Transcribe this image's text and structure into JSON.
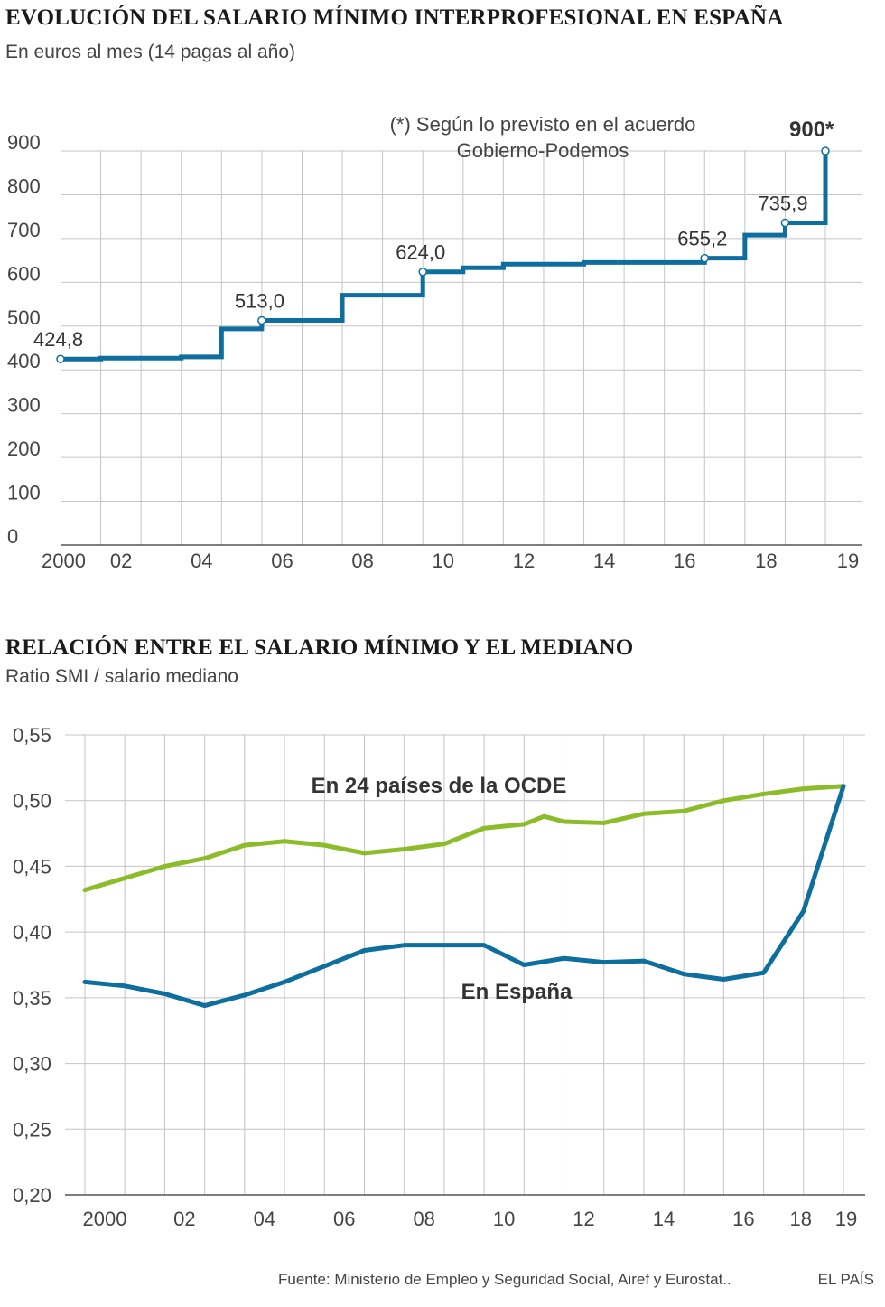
{
  "chart_data": [
    {
      "type": "line",
      "title": "EVOLUCIÓN DEL SALARIO MÍNIMO INTERPROFESIONAL EN ESPAÑA",
      "subtitle": "En euros al mes (14 pagas al año)",
      "xlabel": "",
      "ylabel": "",
      "ylim": [
        0,
        900
      ],
      "y_ticks": [
        "0",
        "100",
        "200",
        "300",
        "400",
        "500",
        "600",
        "700",
        "800",
        "900"
      ],
      "x_tick_labels": [
        {
          "year": 2000,
          "label": "2000"
        },
        {
          "year": 2002,
          "label": "02"
        },
        {
          "year": 2004,
          "label": "04"
        },
        {
          "year": 2006,
          "label": "06"
        },
        {
          "year": 2008,
          "label": "08"
        },
        {
          "year": 2010,
          "label": "10"
        },
        {
          "year": 2012,
          "label": "12"
        },
        {
          "year": 2014,
          "label": "14"
        },
        {
          "year": 2016,
          "label": "16"
        },
        {
          "year": 2018,
          "label": "18"
        },
        {
          "year": 2019,
          "label": "19"
        }
      ],
      "grid": true,
      "step": true,
      "series": [
        {
          "color": "#0e6e9d",
          "x": [
            2000,
            2001,
            2002,
            2003,
            2004,
            2005,
            2006,
            2007,
            2008,
            2009,
            2010,
            2011,
            2012,
            2013,
            2014,
            2015,
            2016,
            2017,
            2018,
            2019
          ],
          "y": [
            424.8,
            426.8,
            426.8,
            429.6,
            493.5,
            513.0,
            513.0,
            570.6,
            570.6,
            624.0,
            633.3,
            641.4,
            641.4,
            645.3,
            645.3,
            645.3,
            655.2,
            707.7,
            735.9,
            900.0
          ]
        }
      ],
      "labels": [
        {
          "year": 2000,
          "value": 424.8,
          "text": "424,8"
        },
        {
          "year": 2005,
          "value": 513.0,
          "text": "513,0"
        },
        {
          "year": 2009,
          "value": 624.0,
          "text": "624,0"
        },
        {
          "year": 2016,
          "value": 655.2,
          "text": "655,2"
        },
        {
          "year": 2018,
          "value": 735.9,
          "text": "735,9"
        },
        {
          "year": 2019,
          "value": 900.0,
          "text": "900*"
        }
      ],
      "note": [
        "(*) Según lo previsto en el acuerdo",
        "Gobierno-Podemos"
      ]
    },
    {
      "type": "line",
      "title": "RELACIÓN ENTRE EL SALARIO MÍNIMO Y EL MEDIANO",
      "subtitle": "Ratio SMI / salario mediano",
      "xlabel": "",
      "ylabel": "",
      "ylim": [
        0.2,
        0.55
      ],
      "y_ticks": [
        "0,20",
        "0,25",
        "0,30",
        "0,35",
        "0,40",
        "0,45",
        "0,50",
        "0,55"
      ],
      "x_tick_labels": [
        {
          "year": 2000,
          "label": "2000"
        },
        {
          "year": 2002,
          "label": "02"
        },
        {
          "year": 2004,
          "label": "04"
        },
        {
          "year": 2006,
          "label": "06"
        },
        {
          "year": 2008,
          "label": "08"
        },
        {
          "year": 2010,
          "label": "10"
        },
        {
          "year": 2012,
          "label": "12"
        },
        {
          "year": 2014,
          "label": "14"
        },
        {
          "year": 2016,
          "label": "16"
        },
        {
          "year": 2018,
          "label": "18"
        },
        {
          "year": 2019,
          "label": "19"
        }
      ],
      "grid": true,
      "series": [
        {
          "name": "En 24 países de la OCDE",
          "color": "#8cbc2a",
          "x": [
            2000,
            2001,
            2002,
            2003,
            2004,
            2005,
            2006,
            2007,
            2008,
            2009,
            2010,
            2011,
            2011.5,
            2012,
            2013,
            2014,
            2015,
            2016,
            2017,
            2018,
            2019
          ],
          "y": [
            0.432,
            0.441,
            0.45,
            0.456,
            0.466,
            0.469,
            0.466,
            0.46,
            0.463,
            0.467,
            0.479,
            0.482,
            0.488,
            0.484,
            0.483,
            0.49,
            0.492,
            0.5,
            0.505,
            0.509,
            0.511
          ]
        },
        {
          "name": "En España",
          "color": "#0e6e9d",
          "x": [
            2000,
            2001,
            2002,
            2003,
            2004,
            2005,
            2006,
            2007,
            2008,
            2009,
            2010,
            2011,
            2012,
            2013,
            2014,
            2015,
            2016,
            2017,
            2018,
            2019
          ],
          "y": [
            0.362,
            0.359,
            0.353,
            0.344,
            0.352,
            0.362,
            0.374,
            0.386,
            0.39,
            0.39,
            0.39,
            0.375,
            0.38,
            0.377,
            0.378,
            0.368,
            0.364,
            0.369,
            0.416,
            0.511
          ]
        }
      ]
    }
  ],
  "footer": {
    "source": "Fuente: Ministerio de Empleo y Seguridad Social, Airef y Eurostat..",
    "brand": "EL PAÍS"
  }
}
